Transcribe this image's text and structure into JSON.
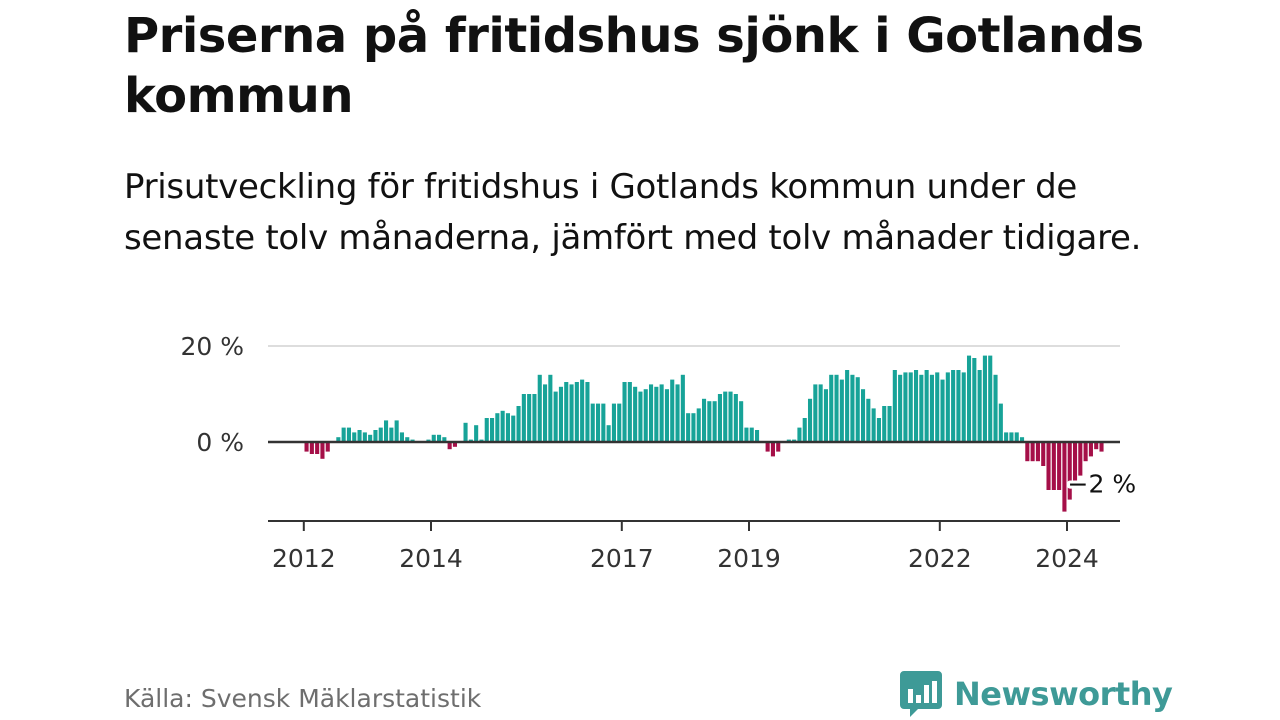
{
  "title": "Priserna på fritidshus sjönk i Gotlands kommun",
  "subtitle": "Prisutveckling för fritidshus i Gotlands kommun under de senaste tolv månaderna, jämfört med tolv månader tidigare.",
  "source": "Källa: Svensk Mäklarstatistik",
  "brand": {
    "name": "Newsworthy",
    "icon": "newsworthy-chart-bubble-icon",
    "color": "#3e9a97"
  },
  "colors": {
    "positive": "#17a398",
    "negative": "#a50f48",
    "axis": "#333333",
    "grid": "#dddddd",
    "text": "#333333"
  },
  "chart_data": {
    "type": "bar",
    "y_ticks": [
      {
        "value": 0,
        "label": "0 %"
      },
      {
        "value": 20,
        "label": "20 %"
      }
    ],
    "ylim": [
      -16,
      21
    ],
    "x_ticks": [
      {
        "value": 2012,
        "label": "2012"
      },
      {
        "value": 2014,
        "label": "2014"
      },
      {
        "value": 2017,
        "label": "2017"
      },
      {
        "value": 2019,
        "label": "2019"
      },
      {
        "value": 2022,
        "label": "2022"
      },
      {
        "value": 2024,
        "label": "2024"
      }
    ],
    "x_start": 2011.96,
    "month_step": 0.08333,
    "annotation": {
      "label": "−2 %"
    },
    "values": [
      0,
      -2,
      -2.5,
      -2.5,
      -3.5,
      -2,
      0,
      1,
      3,
      3,
      2,
      2.5,
      2,
      1.5,
      2.5,
      3,
      4.5,
      3,
      4.5,
      2,
      1,
      0.5,
      0,
      0,
      0.5,
      1.5,
      1.5,
      1,
      -1.5,
      -1,
      0,
      4,
      0.5,
      3.5,
      0.5,
      5,
      5,
      6,
      6.5,
      6,
      5.5,
      7.5,
      10,
      10,
      10,
      14,
      12,
      14,
      10.5,
      11.5,
      12.5,
      12,
      12.5,
      13,
      12.5,
      8,
      8,
      8,
      3.5,
      8,
      8,
      12.5,
      12.5,
      11.5,
      10.5,
      11,
      12,
      11.5,
      12,
      11,
      13,
      12,
      14,
      6,
      6,
      7,
      9,
      8.5,
      8.5,
      10,
      10.5,
      10.5,
      10,
      8.5,
      3,
      3,
      2.5,
      0,
      -2,
      -3,
      -2,
      0,
      0.5,
      0.5,
      3,
      5,
      9,
      12,
      12,
      11,
      14,
      14,
      13,
      15,
      14,
      13.5,
      11,
      9,
      7,
      5,
      7.5,
      7.5,
      15,
      14,
      14.5,
      14.5,
      15,
      14,
      15,
      14,
      14.5,
      13,
      14.5,
      15,
      15,
      14.5,
      18,
      17.5,
      15,
      18,
      18,
      14,
      8,
      2,
      2,
      2,
      1,
      -4,
      -4,
      -4,
      -5,
      -10,
      -10,
      -10,
      -14.5,
      -12,
      -9,
      -7,
      -4,
      -3,
      -1.5,
      -2
    ]
  }
}
